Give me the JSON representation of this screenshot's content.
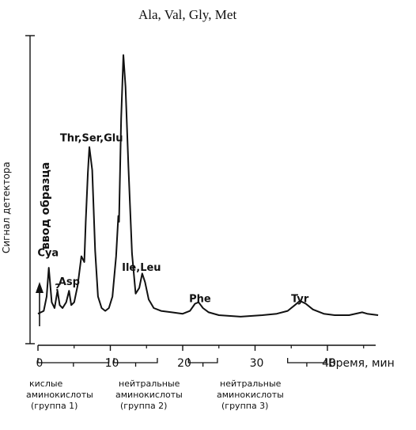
{
  "chart_data": {
    "type": "line",
    "title": "Ala, Val, Gly, Met",
    "ylabel": "Сигнал детектора",
    "xlabel": "Время, мин",
    "xlim": [
      0,
      47
    ],
    "ylim": [
      0,
      100
    ],
    "x_ticks": [
      "0",
      "10",
      "20",
      "30",
      "40"
    ],
    "injection_label": "ввод образца",
    "peak_labels": [
      {
        "text": "Cya",
        "x": 1.4,
        "y": 26
      },
      {
        "text": "?",
        "x": 2.7,
        "y": 14
      },
      {
        "text": "Asp",
        "x": 4.3,
        "y": 16
      },
      {
        "text": "Thr,Ser,Glu",
        "x": 7.4,
        "y": 66
      },
      {
        "text": "Ile,Leu",
        "x": 14.3,
        "y": 21
      },
      {
        "text": "Phe",
        "x": 22.4,
        "y": 10
      },
      {
        "text": "Tyr",
        "x": 36.2,
        "y": 10
      }
    ],
    "series": [
      {
        "x": [
          0,
          0.8,
          1.2,
          1.5,
          1.9,
          2.3,
          2.7,
          3.0,
          3.4,
          3.9,
          4.3,
          4.6,
          5.0,
          5.5,
          6.0,
          6.4,
          6.6,
          6.9,
          7.1,
          7.5,
          7.9,
          8.3,
          8.8,
          9.3,
          9.8,
          10.3,
          10.8,
          11.1,
          11.2,
          11.5,
          11.8,
          12.1,
          12.5,
          13.0,
          13.5,
          14.0,
          14.4,
          14.8,
          15.3,
          16.0,
          17.0,
          18.5,
          20.0,
          21.0,
          21.7,
          22.2,
          22.8,
          23.6,
          25.0,
          28.0,
          31.0,
          33.0,
          34.5,
          35.5,
          36.2,
          37.0,
          38.0,
          39.5,
          41.0,
          43.0,
          44.8,
          45.5,
          47.0
        ],
        "y": [
          6,
          7,
          12,
          22,
          10,
          8,
          14,
          9,
          8,
          10,
          14,
          9,
          10,
          16,
          26,
          24,
          38,
          55,
          64,
          56,
          28,
          12,
          8,
          7,
          8,
          12,
          26,
          40,
          38,
          74,
          96,
          85,
          57,
          27,
          13,
          15,
          20,
          17,
          11,
          8,
          7,
          6.5,
          6,
          7,
          9.5,
          10,
          8,
          6.5,
          5.5,
          5,
          5.5,
          6,
          7,
          9,
          10.5,
          9.5,
          7.5,
          6,
          5.5,
          5.5,
          6.5,
          6,
          5.5
        ]
      }
    ],
    "groups": [
      {
        "lines": [
          "кислые",
          "аминокислоты",
          "(группа  1)"
        ],
        "range": [
          0,
          9.8
        ]
      },
      {
        "lines": [
          "нейтральные",
          "аминокислоты",
          "(группа  2)"
        ],
        "range": [
          10.5,
          16.5
        ]
      },
      {
        "lines": [
          "нейтральные",
          "аминокислоты",
          "(группа  3)"
        ],
        "range": [
          20.8,
          24.8
        ]
      }
    ],
    "bracket_tyr": [
      34.5,
      39.8
    ],
    "grid": false,
    "legend": "none"
  }
}
